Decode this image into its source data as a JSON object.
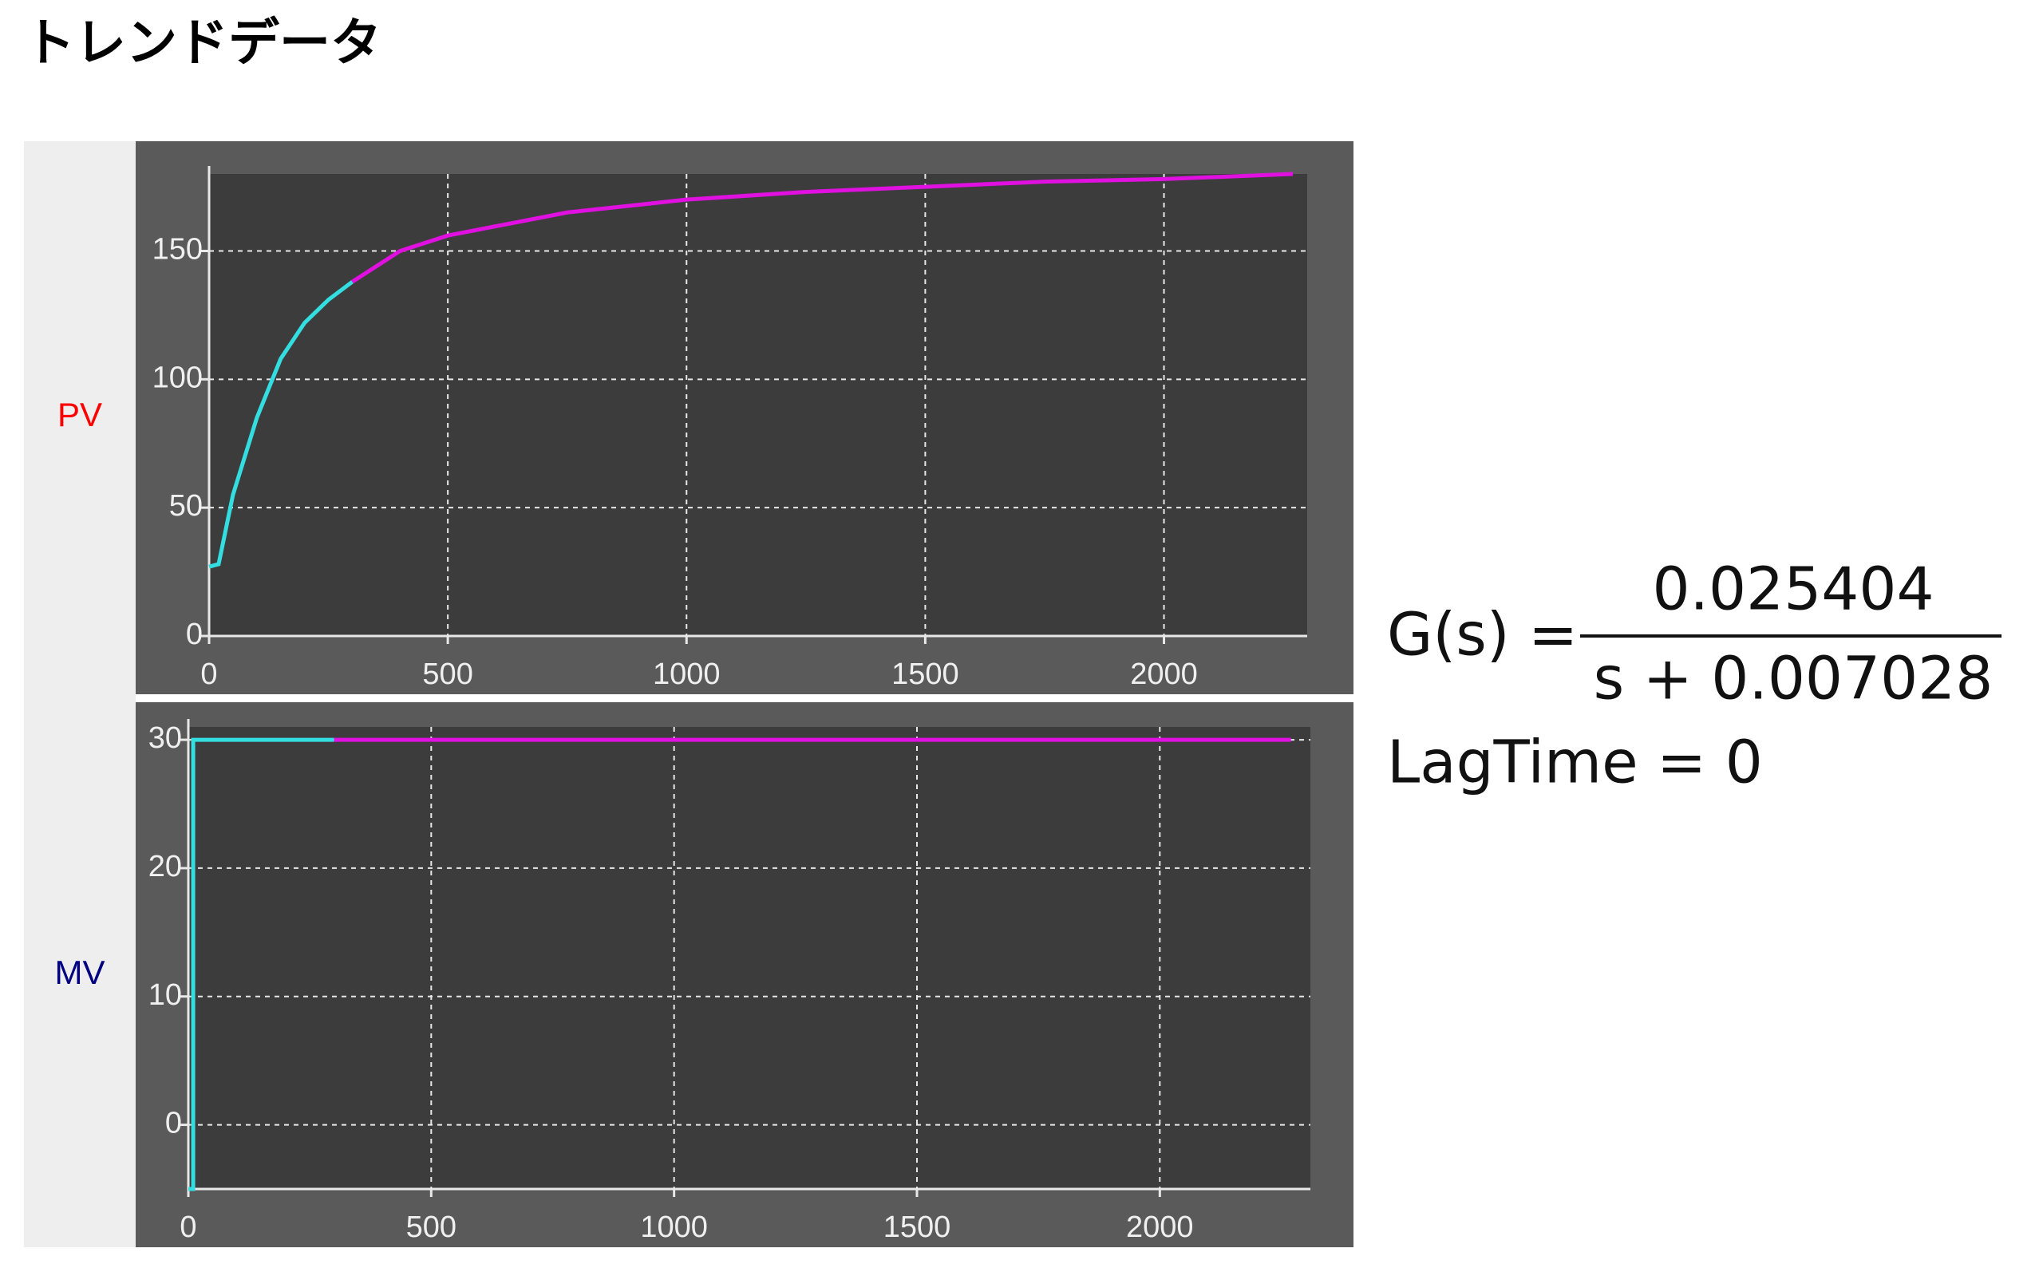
{
  "title": "トレンドデータ",
  "chart_data": [
    {
      "type": "line",
      "ylabel": "PV",
      "ylabel_color": "#ff0000",
      "x": [
        0,
        20,
        50,
        100,
        150,
        200,
        250,
        300,
        400,
        500,
        750,
        1000,
        1250,
        1500,
        1750,
        2000,
        2270
      ],
      "series": [
        {
          "color": "#33dde0",
          "values": [
            27,
            28,
            55,
            85,
            108,
            122,
            131,
            138,
            null,
            null,
            null,
            null,
            null,
            null,
            null,
            null,
            null
          ]
        },
        {
          "color": "#e010e0",
          "values": [
            null,
            null,
            null,
            null,
            null,
            null,
            null,
            138,
            150,
            156,
            165,
            170,
            173,
            175,
            177,
            178,
            180
          ]
        }
      ],
      "xlim": [
        0,
        2300
      ],
      "ylim": [
        0,
        180
      ],
      "xticks": [
        0,
        500,
        1000,
        1500,
        2000
      ],
      "yticks": [
        0,
        50,
        100,
        150
      ],
      "grid": true
    },
    {
      "type": "line",
      "ylabel": "MV",
      "ylabel_color": "#000080",
      "x": [
        0,
        10,
        10,
        300,
        500,
        1000,
        1500,
        2000,
        2270
      ],
      "series": [
        {
          "color": "#33dde0",
          "values": [
            -5,
            -5,
            30,
            30,
            null,
            null,
            null,
            null,
            null
          ]
        },
        {
          "color": "#e010e0",
          "values": [
            null,
            null,
            null,
            30,
            30,
            30,
            30,
            30,
            30
          ]
        }
      ],
      "xlim": [
        0,
        2310
      ],
      "ylim": [
        -5,
        31
      ],
      "xticks": [
        0,
        500,
        1000,
        1500,
        2000
      ],
      "yticks": [
        0,
        10,
        20,
        30
      ],
      "grid": true
    }
  ],
  "formula": {
    "lhs": "G(s) =",
    "numerator": "0.025404",
    "denominator": "s + 0.007028",
    "lag": "LagTime = 0"
  }
}
